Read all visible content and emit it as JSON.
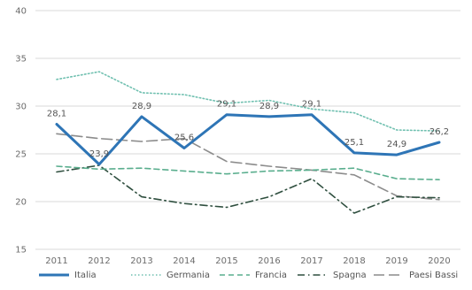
{
  "chart_data": {
    "type": "line",
    "title": "",
    "xlabel": "",
    "ylabel": "",
    "x": [
      "2011",
      "2012",
      "2013",
      "2014",
      "2015",
      "2016",
      "2017",
      "2018",
      "2019",
      "2020"
    ],
    "ylim": [
      15,
      40
    ],
    "yticks": [
      15,
      20,
      25,
      30,
      35,
      40
    ],
    "grid": true,
    "legend_position": "bottom",
    "series": [
      {
        "name": "Italia",
        "values": [
          28.1,
          23.9,
          28.9,
          25.6,
          29.1,
          28.9,
          29.1,
          25.1,
          24.9,
          26.2
        ],
        "color": "#2e75b6",
        "dash": "solid",
        "width": 3,
        "labels": [
          "28,1",
          "23,9",
          "28,9",
          "25,6",
          "29,1",
          "28,9",
          "29,1",
          "25,1",
          "24,9",
          "26,2"
        ]
      },
      {
        "name": "Germania",
        "values": [
          32.8,
          33.6,
          31.4,
          31.2,
          30.3,
          30.6,
          29.7,
          29.3,
          27.5,
          27.4
        ],
        "color": "#70c0b0",
        "dash": "dot",
        "width": 1.6
      },
      {
        "name": "Francia",
        "values": [
          23.7,
          23.4,
          23.5,
          23.2,
          22.9,
          23.2,
          23.3,
          23.5,
          22.4,
          22.3
        ],
        "color": "#5aae8e",
        "dash": "dash",
        "width": 1.6
      },
      {
        "name": "Spagna",
        "values": [
          23.1,
          23.8,
          20.5,
          19.8,
          19.4,
          20.5,
          22.4,
          18.8,
          20.5,
          20.4
        ],
        "color": "#2f4f3f",
        "dash": "dashdot",
        "width": 1.6
      },
      {
        "name": "Paesi Bassi",
        "values": [
          27.1,
          26.6,
          26.3,
          26.6,
          24.2,
          23.7,
          23.3,
          22.8,
          20.6,
          20.2
        ],
        "color": "#8c8c8c",
        "dash": "longdash",
        "width": 1.6
      }
    ]
  }
}
